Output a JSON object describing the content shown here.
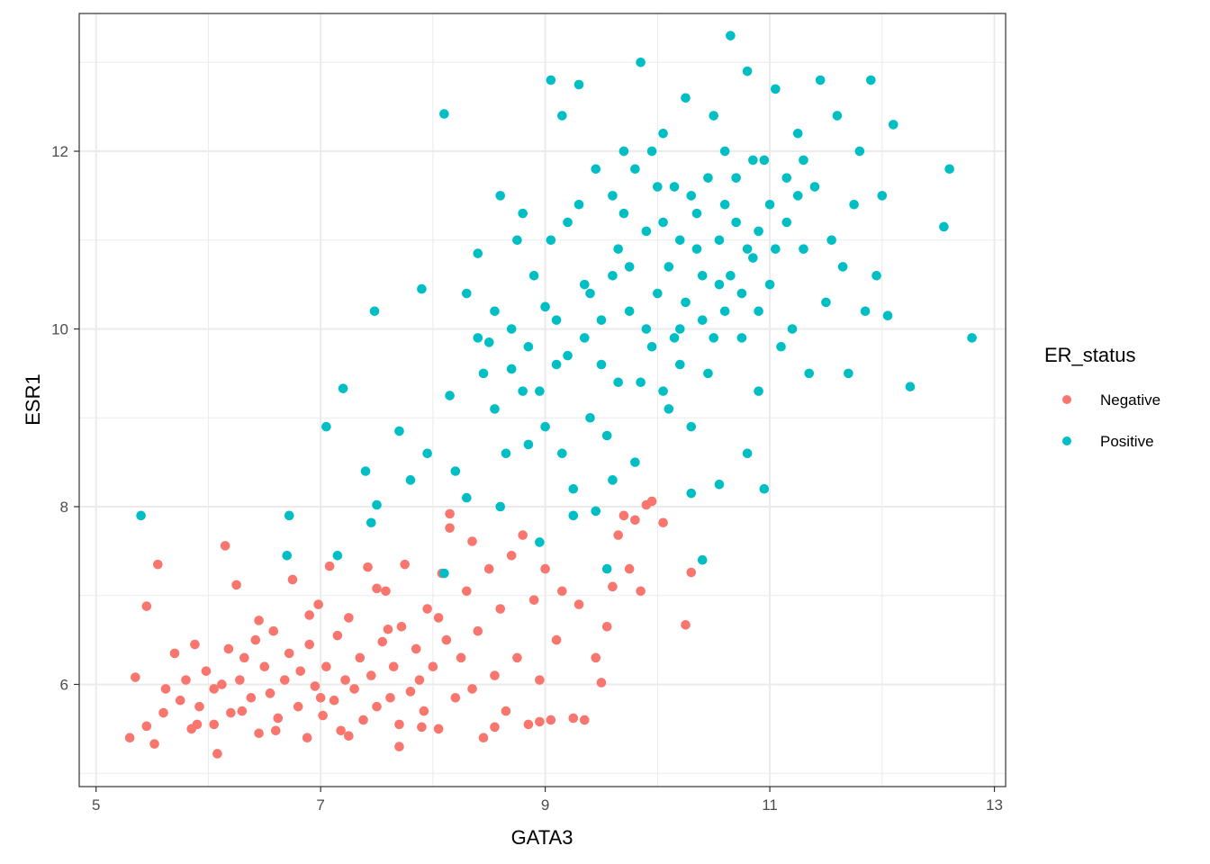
{
  "chart_data": {
    "type": "scatter",
    "xlabel": "GATA3",
    "ylabel": "ESR1",
    "xlim": [
      4.85,
      13.1
    ],
    "ylim": [
      4.85,
      13.55
    ],
    "x_ticks": [
      5,
      7,
      9,
      11,
      13
    ],
    "y_ticks": [
      6,
      8,
      10,
      12
    ],
    "x_tick_labels": [
      "5",
      "7",
      "9",
      "11",
      "13"
    ],
    "y_tick_labels": [
      "6",
      "8",
      "10",
      "12"
    ],
    "grid": true,
    "legend": {
      "title": "ER_status",
      "placement": "right"
    },
    "series": [
      {
        "name": "Negative",
        "color": "#F8766D",
        "points": [
          [
            5.3,
            5.4
          ],
          [
            5.35,
            6.08
          ],
          [
            5.45,
            5.53
          ],
          [
            5.45,
            6.88
          ],
          [
            5.52,
            5.33
          ],
          [
            5.55,
            7.35
          ],
          [
            5.6,
            5.68
          ],
          [
            5.62,
            5.95
          ],
          [
            5.7,
            6.35
          ],
          [
            5.75,
            5.82
          ],
          [
            5.8,
            6.05
          ],
          [
            5.85,
            5.5
          ],
          [
            5.88,
            6.45
          ],
          [
            5.92,
            5.75
          ],
          [
            5.98,
            6.15
          ],
          [
            6.05,
            5.55
          ],
          [
            6.08,
            5.22
          ],
          [
            6.12,
            6.0
          ],
          [
            6.15,
            7.56
          ],
          [
            6.18,
            6.4
          ],
          [
            6.2,
            5.68
          ],
          [
            6.25,
            7.12
          ],
          [
            6.28,
            6.05
          ],
          [
            6.32,
            6.3
          ],
          [
            6.38,
            5.85
          ],
          [
            6.42,
            6.5
          ],
          [
            6.45,
            5.45
          ],
          [
            6.5,
            6.2
          ],
          [
            6.55,
            5.9
          ],
          [
            6.58,
            6.6
          ],
          [
            6.62,
            5.62
          ],
          [
            6.68,
            6.05
          ],
          [
            6.72,
            6.35
          ],
          [
            6.75,
            7.18
          ],
          [
            6.8,
            5.75
          ],
          [
            6.82,
            6.15
          ],
          [
            6.88,
            5.4
          ],
          [
            6.9,
            6.45
          ],
          [
            6.95,
            5.98
          ],
          [
            6.98,
            6.9
          ],
          [
            7.02,
            5.65
          ],
          [
            7.05,
            6.2
          ],
          [
            7.08,
            7.33
          ],
          [
            7.12,
            5.82
          ],
          [
            7.15,
            6.55
          ],
          [
            7.18,
            5.48
          ],
          [
            7.22,
            6.05
          ],
          [
            7.25,
            6.75
          ],
          [
            7.3,
            5.95
          ],
          [
            7.35,
            6.3
          ],
          [
            7.38,
            5.6
          ],
          [
            7.42,
            7.32
          ],
          [
            7.45,
            6.1
          ],
          [
            7.5,
            5.75
          ],
          [
            7.55,
            6.48
          ],
          [
            7.58,
            7.05
          ],
          [
            7.62,
            5.85
          ],
          [
            7.65,
            6.2
          ],
          [
            7.7,
            5.55
          ],
          [
            7.72,
            6.65
          ],
          [
            7.75,
            7.35
          ],
          [
            7.8,
            5.92
          ],
          [
            7.85,
            6.4
          ],
          [
            7.88,
            6.05
          ],
          [
            7.92,
            5.7
          ],
          [
            7.95,
            6.85
          ],
          [
            8.0,
            6.2
          ],
          [
            8.05,
            5.5
          ],
          [
            8.08,
            7.25
          ],
          [
            8.12,
            6.5
          ],
          [
            8.15,
            7.92
          ],
          [
            8.2,
            5.85
          ],
          [
            8.25,
            6.3
          ],
          [
            8.3,
            7.05
          ],
          [
            8.35,
            5.95
          ],
          [
            8.4,
            6.6
          ],
          [
            8.45,
            5.4
          ],
          [
            8.5,
            7.3
          ],
          [
            8.55,
            6.1
          ],
          [
            8.6,
            6.85
          ],
          [
            8.65,
            5.7
          ],
          [
            8.7,
            7.45
          ],
          [
            8.75,
            6.3
          ],
          [
            8.8,
            7.68
          ],
          [
            8.85,
            5.55
          ],
          [
            8.9,
            6.95
          ],
          [
            8.95,
            6.05
          ],
          [
            9.0,
            7.3
          ],
          [
            9.05,
            5.6
          ],
          [
            9.1,
            6.5
          ],
          [
            9.15,
            7.05
          ],
          [
            9.3,
            6.9
          ],
          [
            9.35,
            5.6
          ],
          [
            9.45,
            6.3
          ],
          [
            9.5,
            6.02
          ],
          [
            9.55,
            6.65
          ],
          [
            9.6,
            7.1
          ],
          [
            9.65,
            7.68
          ],
          [
            9.7,
            7.9
          ],
          [
            9.75,
            7.3
          ],
          [
            9.8,
            7.85
          ],
          [
            9.85,
            7.05
          ],
          [
            9.9,
            8.02
          ],
          [
            9.95,
            8.06
          ],
          [
            10.05,
            7.82
          ],
          [
            10.3,
            7.26
          ],
          [
            10.25,
            6.67
          ],
          [
            8.15,
            7.76
          ],
          [
            8.35,
            7.61
          ],
          [
            7.5,
            7.08
          ],
          [
            6.45,
            6.72
          ],
          [
            6.9,
            6.78
          ],
          [
            7.6,
            6.62
          ],
          [
            7.25,
            5.42
          ],
          [
            6.6,
            5.48
          ],
          [
            7.9,
            5.52
          ],
          [
            8.55,
            5.52
          ],
          [
            5.9,
            5.55
          ],
          [
            6.3,
            5.7
          ],
          [
            7.0,
            5.85
          ],
          [
            7.7,
            5.3
          ],
          [
            6.05,
            5.95
          ],
          [
            8.95,
            5.58
          ],
          [
            8.05,
            6.75
          ],
          [
            9.25,
            5.62
          ]
        ]
      },
      {
        "name": "Positive",
        "color": "#00BFC4",
        "points": [
          [
            5.4,
            7.9
          ],
          [
            6.7,
            7.45
          ],
          [
            6.72,
            7.9
          ],
          [
            7.05,
            8.9
          ],
          [
            7.2,
            9.33
          ],
          [
            7.15,
            7.45
          ],
          [
            7.4,
            8.4
          ],
          [
            7.45,
            7.82
          ],
          [
            7.5,
            8.02
          ],
          [
            7.48,
            10.2
          ],
          [
            7.7,
            8.85
          ],
          [
            7.8,
            8.3
          ],
          [
            7.9,
            10.45
          ],
          [
            7.95,
            8.6
          ],
          [
            8.1,
            12.42
          ],
          [
            8.15,
            9.25
          ],
          [
            8.1,
            7.25
          ],
          [
            8.2,
            8.4
          ],
          [
            8.3,
            10.4
          ],
          [
            8.4,
            10.85
          ],
          [
            8.45,
            9.5
          ],
          [
            8.5,
            9.85
          ],
          [
            8.55,
            9.1
          ],
          [
            8.6,
            11.5
          ],
          [
            8.65,
            8.6
          ],
          [
            8.7,
            10.0
          ],
          [
            8.75,
            11.0
          ],
          [
            8.8,
            9.3
          ],
          [
            8.85,
            8.7
          ],
          [
            8.9,
            10.6
          ],
          [
            8.95,
            7.6
          ],
          [
            9.0,
            10.25
          ],
          [
            9.05,
            12.8
          ],
          [
            9.1,
            9.6
          ],
          [
            9.15,
            12.4
          ],
          [
            9.2,
            11.2
          ],
          [
            9.25,
            8.2
          ],
          [
            9.3,
            12.75
          ],
          [
            9.35,
            10.5
          ],
          [
            9.4,
            9.0
          ],
          [
            9.45,
            11.8
          ],
          [
            9.5,
            10.1
          ],
          [
            9.55,
            8.8
          ],
          [
            9.6,
            11.5
          ],
          [
            9.65,
            9.4
          ],
          [
            9.7,
            12.0
          ],
          [
            9.75,
            10.7
          ],
          [
            9.8,
            8.5
          ],
          [
            9.85,
            13.0
          ],
          [
            9.9,
            11.1
          ],
          [
            9.95,
            9.8
          ],
          [
            10.0,
            10.4
          ],
          [
            10.05,
            12.2
          ],
          [
            10.1,
            9.1
          ],
          [
            10.15,
            11.6
          ],
          [
            10.2,
            10.0
          ],
          [
            10.25,
            12.6
          ],
          [
            10.3,
            8.9
          ],
          [
            10.35,
            11.3
          ],
          [
            10.4,
            10.6
          ],
          [
            10.45,
            9.5
          ],
          [
            10.5,
            12.4
          ],
          [
            10.55,
            11.0
          ],
          [
            10.6,
            10.2
          ],
          [
            10.65,
            13.3
          ],
          [
            10.7,
            11.7
          ],
          [
            10.75,
            9.9
          ],
          [
            10.8,
            12.9
          ],
          [
            10.85,
            10.8
          ],
          [
            10.9,
            9.3
          ],
          [
            10.95,
            11.9
          ],
          [
            11.0,
            10.5
          ],
          [
            11.05,
            12.7
          ],
          [
            11.1,
            9.8
          ],
          [
            11.15,
            11.2
          ],
          [
            11.2,
            10.0
          ],
          [
            11.25,
            12.2
          ],
          [
            11.3,
            10.9
          ],
          [
            11.35,
            9.5
          ],
          [
            11.4,
            11.6
          ],
          [
            11.45,
            12.8
          ],
          [
            11.5,
            10.3
          ],
          [
            11.55,
            11.0
          ],
          [
            11.6,
            12.4
          ],
          [
            11.65,
            10.7
          ],
          [
            11.7,
            9.5
          ],
          [
            11.75,
            11.4
          ],
          [
            11.8,
            12.0
          ],
          [
            11.85,
            10.2
          ],
          [
            11.9,
            12.8
          ],
          [
            11.95,
            10.6
          ],
          [
            12.0,
            11.5
          ],
          [
            12.1,
            12.3
          ],
          [
            12.05,
            10.15
          ],
          [
            12.25,
            9.35
          ],
          [
            12.55,
            11.15
          ],
          [
            12.6,
            11.8
          ],
          [
            12.8,
            9.9
          ],
          [
            10.4,
            7.4
          ],
          [
            10.3,
            8.15
          ],
          [
            10.55,
            8.25
          ],
          [
            10.8,
            8.6
          ],
          [
            10.95,
            8.2
          ],
          [
            9.55,
            7.3
          ],
          [
            9.45,
            7.95
          ],
          [
            9.6,
            8.3
          ],
          [
            9.25,
            7.9
          ],
          [
            9.0,
            8.9
          ],
          [
            8.85,
            9.8
          ],
          [
            9.3,
            11.4
          ],
          [
            9.75,
            10.2
          ],
          [
            10.05,
            11.2
          ],
          [
            10.2,
            9.6
          ],
          [
            10.35,
            10.9
          ],
          [
            10.6,
            11.4
          ],
          [
            10.75,
            10.4
          ],
          [
            10.9,
            11.1
          ],
          [
            10.1,
            10.7
          ],
          [
            9.9,
            10.0
          ],
          [
            9.65,
            10.9
          ],
          [
            9.5,
            9.6
          ],
          [
            10.45,
            11.7
          ],
          [
            10.65,
            10.6
          ],
          [
            10.85,
            11.9
          ],
          [
            11.05,
            10.9
          ],
          [
            11.25,
            11.5
          ],
          [
            10.25,
            10.3
          ],
          [
            9.85,
            9.4
          ],
          [
            10.5,
            9.9
          ],
          [
            10.0,
            11.6
          ],
          [
            9.7,
            11.3
          ],
          [
            9.4,
            10.4
          ],
          [
            10.8,
            10.9
          ],
          [
            11.15,
            11.7
          ],
          [
            10.3,
            11.5
          ],
          [
            10.55,
            10.5
          ],
          [
            10.15,
            9.9
          ],
          [
            9.95,
            12.0
          ],
          [
            10.7,
            11.2
          ],
          [
            11.0,
            11.4
          ],
          [
            10.4,
            10.1
          ],
          [
            9.6,
            10.6
          ],
          [
            9.8,
            11.8
          ],
          [
            10.6,
            12.0
          ],
          [
            10.2,
            11.0
          ],
          [
            10.9,
            10.2
          ],
          [
            11.3,
            11.9
          ],
          [
            9.35,
            9.9
          ],
          [
            10.05,
            9.3
          ],
          [
            9.2,
            9.7
          ],
          [
            8.7,
            9.55
          ],
          [
            8.6,
            8.0
          ],
          [
            8.95,
            9.3
          ],
          [
            9.1,
            10.1
          ],
          [
            9.15,
            8.6
          ],
          [
            8.4,
            9.9
          ],
          [
            8.3,
            8.1
          ],
          [
            8.55,
            10.2
          ],
          [
            8.8,
            11.3
          ],
          [
            9.05,
            11.0
          ]
        ]
      }
    ]
  }
}
